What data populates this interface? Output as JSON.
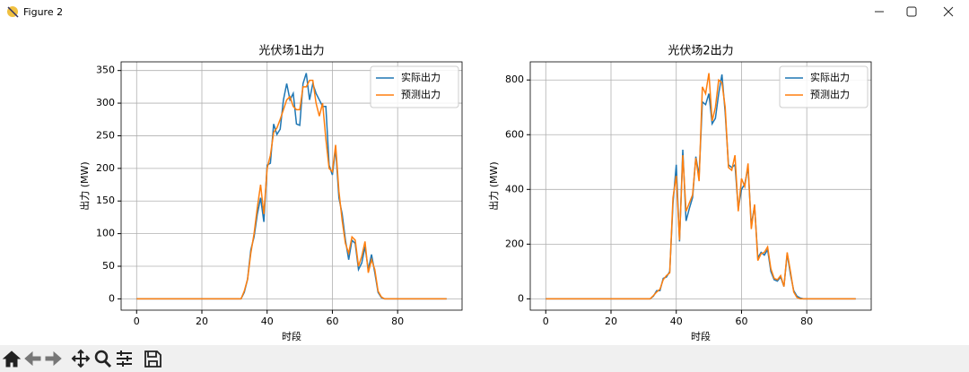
{
  "window": {
    "title": "Figure 2"
  },
  "chart_data": [
    {
      "type": "line",
      "title": "光伏场1出力",
      "xlabel": "时段",
      "ylabel": "出力 (MW)",
      "x": [
        0,
        1,
        2,
        3,
        4,
        5,
        6,
        7,
        8,
        9,
        10,
        11,
        12,
        13,
        14,
        15,
        16,
        17,
        18,
        19,
        20,
        21,
        22,
        23,
        24,
        25,
        26,
        27,
        28,
        29,
        30,
        31,
        32,
        33,
        34,
        35,
        36,
        37,
        38,
        39,
        40,
        41,
        42,
        43,
        44,
        45,
        46,
        47,
        48,
        49,
        50,
        51,
        52,
        53,
        54,
        55,
        56,
        57,
        58,
        59,
        60,
        61,
        62,
        63,
        64,
        65,
        66,
        67,
        68,
        69,
        70,
        71,
        72,
        73,
        74,
        75,
        76,
        77,
        78,
        79,
        80,
        81,
        82,
        83,
        84,
        85,
        86,
        87,
        88,
        89,
        90,
        91,
        92,
        93,
        94,
        95
      ],
      "series": [
        {
          "name": "实际出力",
          "color": "#1f77b4",
          "values": [
            0,
            0,
            0,
            0,
            0,
            0,
            0,
            0,
            0,
            0,
            0,
            0,
            0,
            0,
            0,
            0,
            0,
            0,
            0,
            0,
            0,
            0,
            0,
            0,
            0,
            0,
            0,
            0,
            0,
            0,
            0,
            0,
            0,
            10,
            30,
            75,
            95,
            130,
            155,
            118,
            205,
            208,
            268,
            252,
            260,
            305,
            330,
            305,
            315,
            268,
            266,
            330,
            346,
            305,
            330,
            315,
            305,
            295,
            295,
            205,
            190,
            230,
            155,
            130,
            90,
            60,
            90,
            85,
            45,
            55,
            80,
            45,
            68,
            40,
            10,
            2,
            0,
            0,
            0,
            0,
            0,
            0,
            0,
            0,
            0,
            0,
            0,
            0,
            0,
            0,
            0,
            0,
            0,
            0,
            0,
            0
          ]
        },
        {
          "name": "预测出力",
          "color": "#ff7f0e",
          "values": [
            0,
            0,
            0,
            0,
            0,
            0,
            0,
            0,
            0,
            0,
            0,
            0,
            0,
            0,
            0,
            0,
            0,
            0,
            0,
            0,
            0,
            0,
            0,
            0,
            0,
            0,
            0,
            0,
            0,
            0,
            0,
            0,
            0,
            12,
            30,
            70,
            100,
            140,
            175,
            130,
            200,
            220,
            255,
            262,
            275,
            290,
            305,
            310,
            295,
            290,
            290,
            325,
            325,
            335,
            335,
            300,
            280,
            300,
            245,
            200,
            195,
            236,
            165,
            120,
            85,
            70,
            95,
            90,
            50,
            65,
            88,
            40,
            60,
            45,
            12,
            3,
            0,
            0,
            0,
            0,
            0,
            0,
            0,
            0,
            0,
            0,
            0,
            0,
            0,
            0,
            0,
            0,
            0,
            0,
            0,
            0
          ]
        }
      ],
      "xlim": [
        -4.75,
        99.75
      ],
      "xticks": [
        0,
        20,
        40,
        60,
        80
      ],
      "ylim": [
        -17.3,
        363.3
      ],
      "yticks": [
        0,
        50,
        100,
        150,
        200,
        250,
        300,
        350
      ],
      "grid": true,
      "legend": "upper right"
    },
    {
      "type": "line",
      "title": "光伏场2出力",
      "xlabel": "时段",
      "ylabel": "出力 (MW)",
      "x": [
        0,
        1,
        2,
        3,
        4,
        5,
        6,
        7,
        8,
        9,
        10,
        11,
        12,
        13,
        14,
        15,
        16,
        17,
        18,
        19,
        20,
        21,
        22,
        23,
        24,
        25,
        26,
        27,
        28,
        29,
        30,
        31,
        32,
        33,
        34,
        35,
        36,
        37,
        38,
        39,
        40,
        41,
        42,
        43,
        44,
        45,
        46,
        47,
        48,
        49,
        50,
        51,
        52,
        53,
        54,
        55,
        56,
        57,
        58,
        59,
        60,
        61,
        62,
        63,
        64,
        65,
        66,
        67,
        68,
        69,
        70,
        71,
        72,
        73,
        74,
        75,
        76,
        77,
        78,
        79,
        80,
        81,
        82,
        83,
        84,
        85,
        86,
        87,
        88,
        89,
        90,
        91,
        92,
        93,
        94,
        95
      ],
      "series": [
        {
          "name": "实际出力",
          "color": "#1f77b4",
          "values": [
            0,
            0,
            0,
            0,
            0,
            0,
            0,
            0,
            0,
            0,
            0,
            0,
            0,
            0,
            0,
            0,
            0,
            0,
            0,
            0,
            0,
            0,
            0,
            0,
            0,
            0,
            0,
            0,
            0,
            0,
            0,
            0,
            0,
            10,
            30,
            30,
            75,
            80,
            100,
            350,
            490,
            210,
            545,
            285,
            330,
            370,
            520,
            450,
            720,
            710,
            750,
            640,
            660,
            750,
            820,
            680,
            490,
            480,
            490,
            330,
            400,
            420,
            480,
            270,
            340,
            150,
            170,
            160,
            180,
            100,
            70,
            65,
            80,
            45,
            165,
            90,
            30,
            10,
            3,
            0,
            0,
            0,
            0,
            0,
            0,
            0,
            0,
            0,
            0,
            0,
            0,
            0,
            0,
            0,
            0,
            0
          ]
        },
        {
          "name": "预测出力",
          "color": "#ff7f0e",
          "values": [
            0,
            0,
            0,
            0,
            0,
            0,
            0,
            0,
            0,
            0,
            0,
            0,
            0,
            0,
            0,
            0,
            0,
            0,
            0,
            0,
            0,
            0,
            0,
            0,
            0,
            0,
            0,
            0,
            0,
            0,
            0,
            0,
            0,
            12,
            25,
            35,
            70,
            85,
            95,
            370,
            450,
            215,
            525,
            320,
            350,
            380,
            515,
            430,
            775,
            750,
            825,
            650,
            700,
            800,
            790,
            700,
            480,
            470,
            525,
            320,
            440,
            410,
            495,
            255,
            345,
            140,
            165,
            170,
            190,
            110,
            75,
            70,
            85,
            45,
            170,
            100,
            25,
            5,
            0,
            0,
            0,
            0,
            0,
            0,
            0,
            0,
            0,
            0,
            0,
            0,
            0,
            0,
            0,
            0,
            0,
            0
          ]
        }
      ],
      "xlim": [
        -4.75,
        99.75
      ],
      "xticks": [
        0,
        20,
        40,
        60,
        80
      ],
      "ylim": [
        -41.25,
        866.25
      ],
      "yticks": [
        0,
        200,
        400,
        600,
        800
      ],
      "grid": true,
      "legend": "upper right"
    }
  ]
}
